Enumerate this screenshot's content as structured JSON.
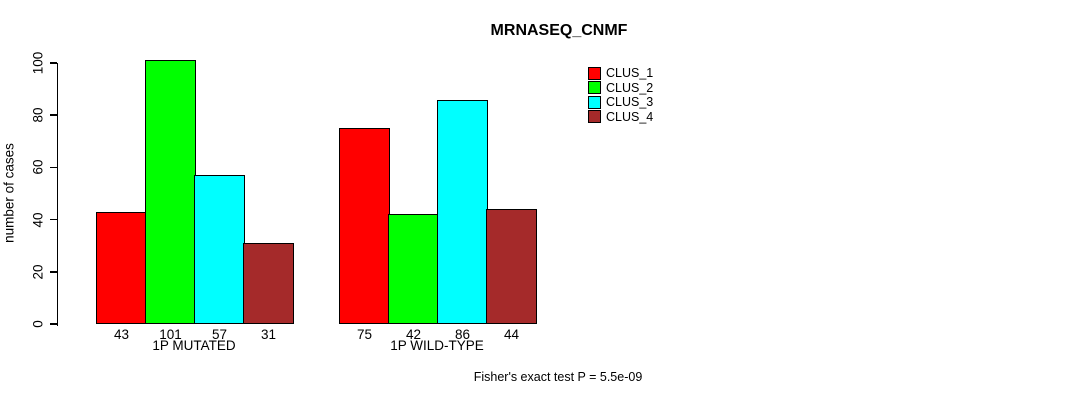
{
  "title": "MRNASEQ_CNMF",
  "footer": "Fisher's exact test P = 5.5e-09",
  "chart_data": {
    "type": "bar",
    "title": "MRNASEQ_CNMF",
    "xlabel": "",
    "ylabel": "number of cases",
    "ylim": [
      0,
      100
    ],
    "yticks": [
      0,
      20,
      40,
      60,
      80,
      100
    ],
    "grid": false,
    "legend_position": "right",
    "categories": [
      "1P MUTATED",
      "1P WILD-TYPE"
    ],
    "groups": [
      {
        "label": "1P MUTATED",
        "values": [
          43,
          101,
          57,
          31
        ]
      },
      {
        "label": "1P WILD-TYPE",
        "values": [
          75,
          42,
          86,
          44
        ]
      }
    ],
    "series": [
      {
        "name": "CLUS_1",
        "color": "#FF0000"
      },
      {
        "name": "CLUS_2",
        "color": "#00FF00"
      },
      {
        "name": "CLUS_3",
        "color": "#00FFFF"
      },
      {
        "name": "CLUS_4",
        "color": "#A52A2A"
      }
    ],
    "annotation": "Fisher's exact test P = 5.5e-09",
    "bar_border_color": "#000000"
  }
}
